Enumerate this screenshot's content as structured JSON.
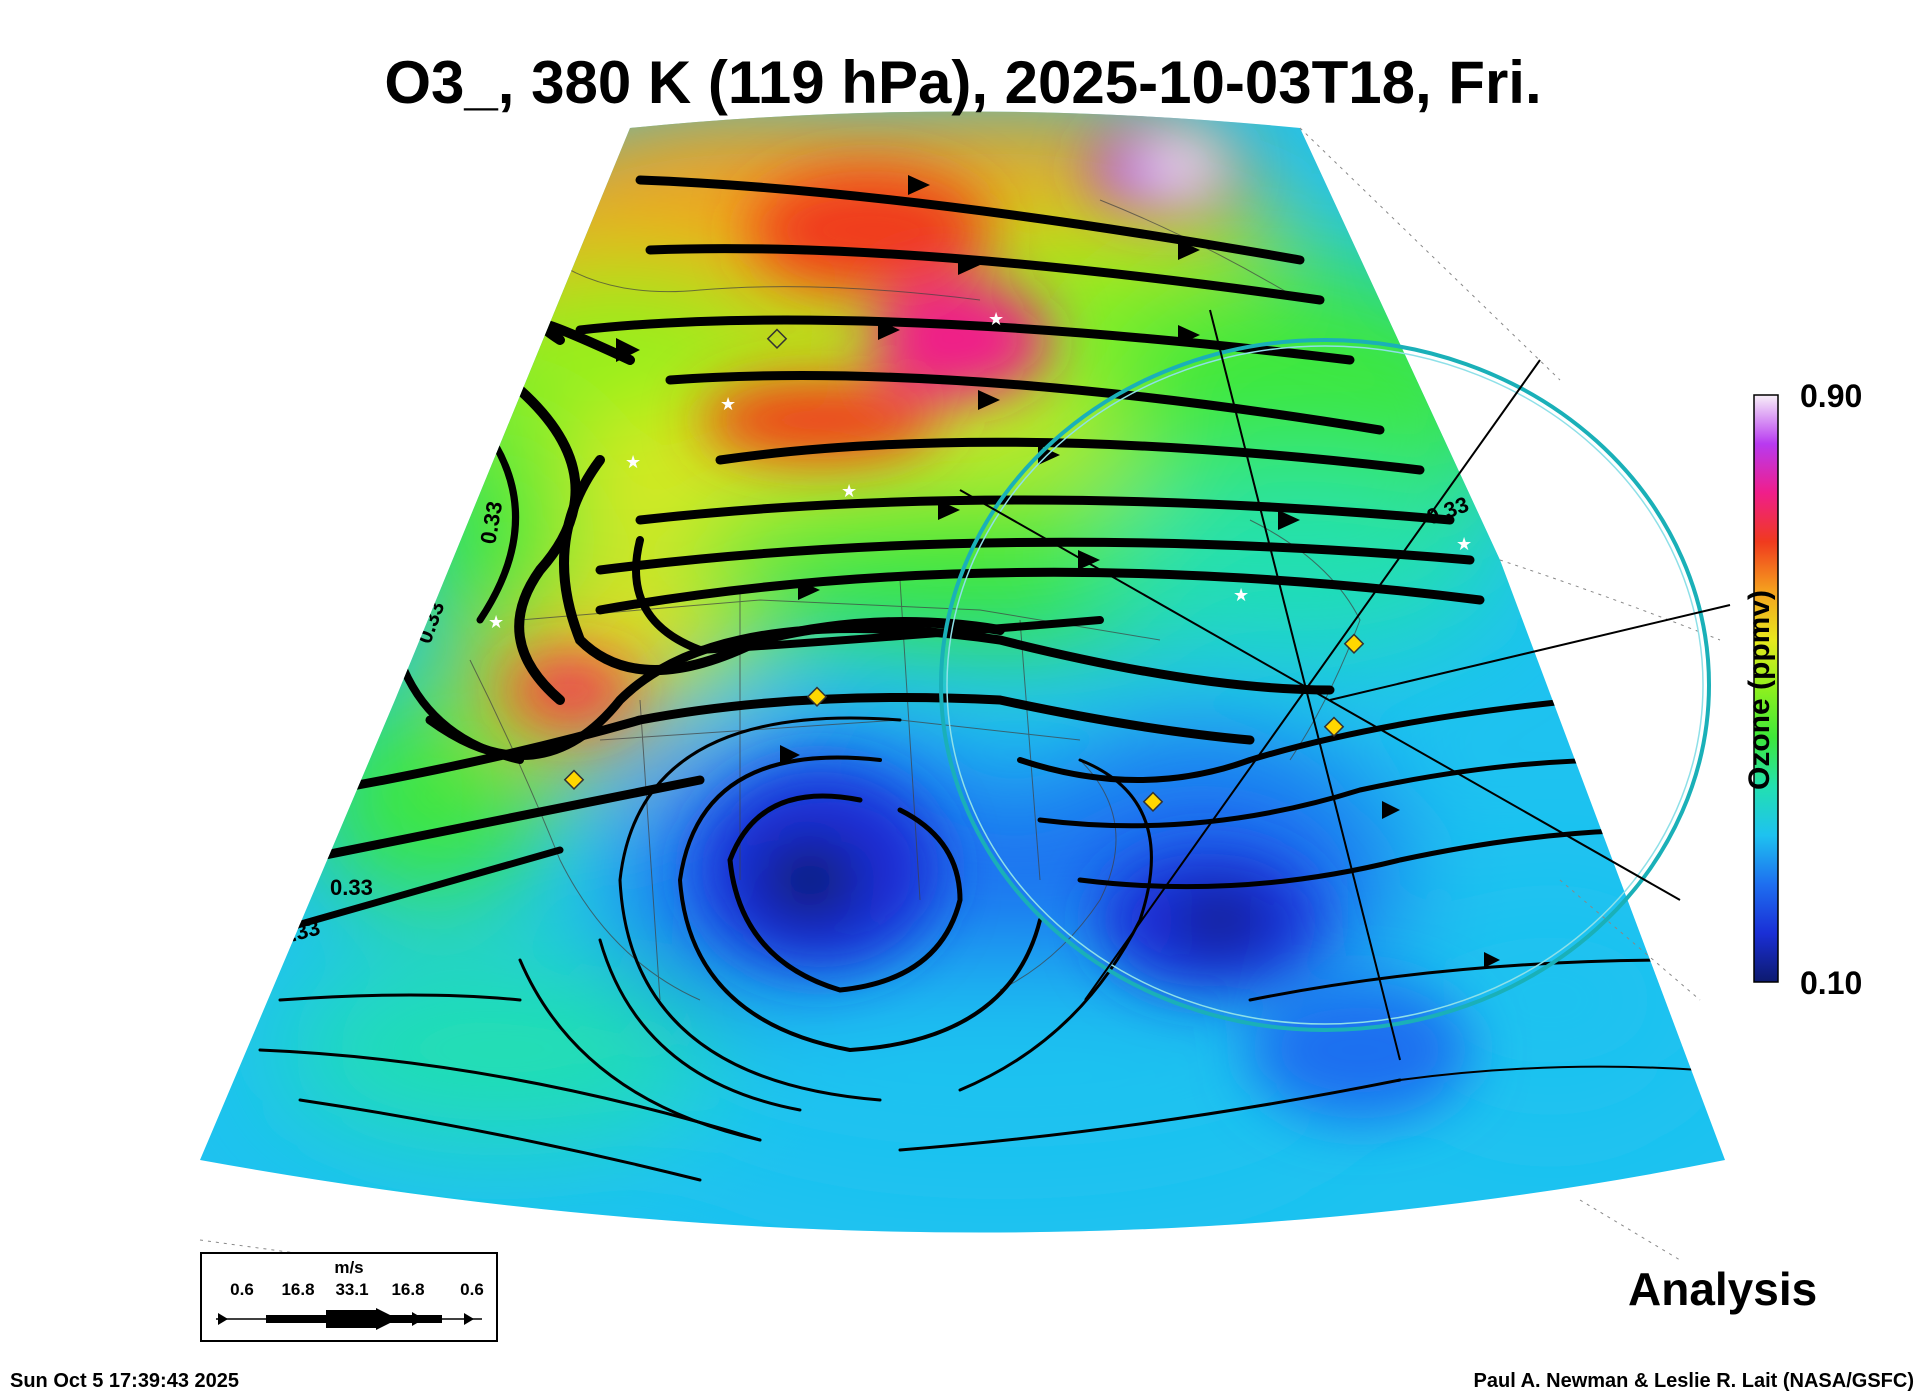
{
  "title": "O3_, 380 K (119 hPa), 2025-10-03T18, Fri.",
  "colorbar": {
    "label": "Ozone (ppmv)",
    "max_label": "0.90",
    "min_label": "0.10",
    "colors": [
      "#0d1a6e",
      "#1a2fd6",
      "#1e6ff0",
      "#1ec2f0",
      "#22e0b0",
      "#3ee83a",
      "#8ef01e",
      "#e8e81e",
      "#f5a01e",
      "#f03a1e",
      "#f01e8a",
      "#b83af0",
      "#f8f0f8"
    ]
  },
  "contour_label": "0.33",
  "wind_key": {
    "units": "m/s",
    "values": [
      "0.6",
      "16.8",
      "33.1",
      "16.8",
      "0.6"
    ]
  },
  "analysis_label": "Analysis",
  "timestamp": "Sun Oct  5 17:39:43 2025",
  "credit": "Paul A. Newman & Leslie R. Lait (NASA/GSFC)"
}
